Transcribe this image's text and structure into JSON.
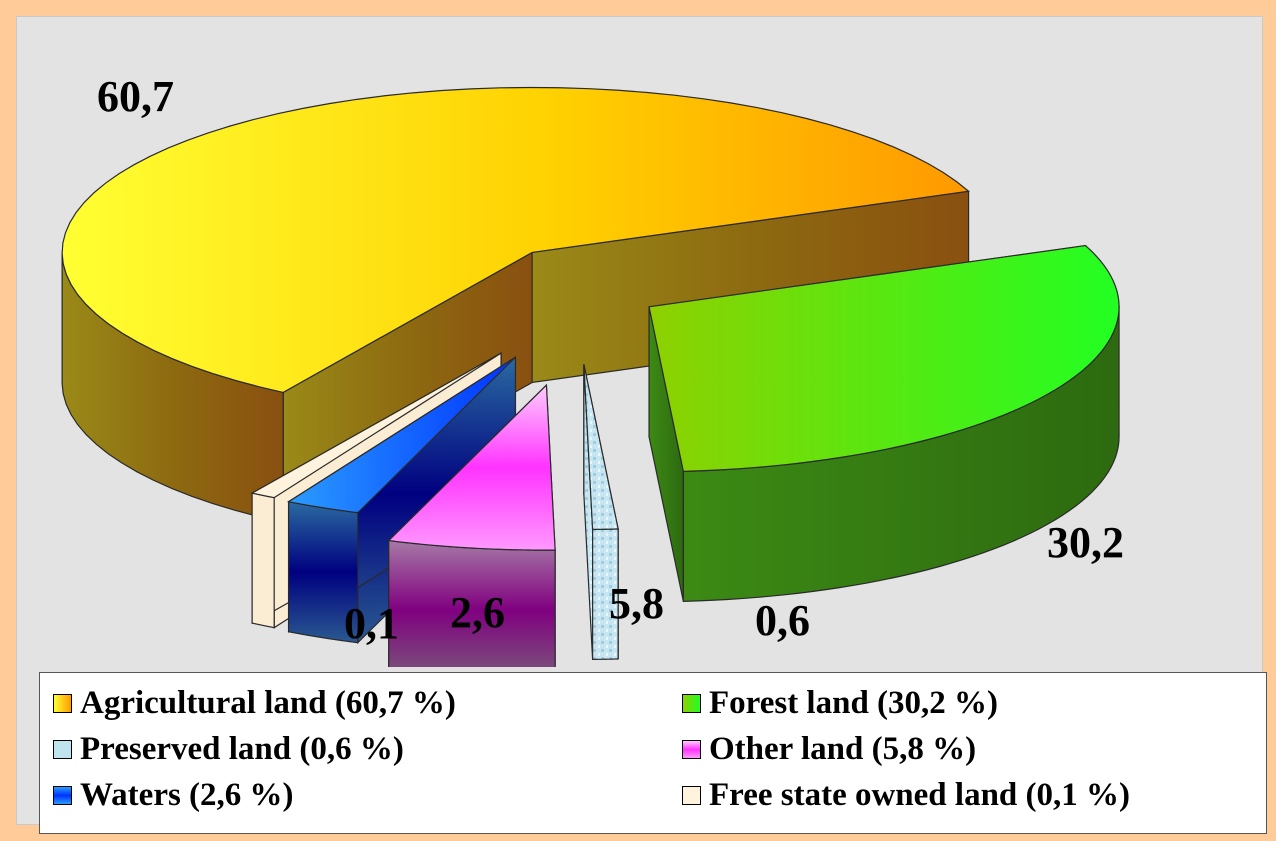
{
  "chart_data": {
    "type": "pie",
    "style": "3d-exploded",
    "slices": [
      {
        "label": "Agricultural land (60,7 %)",
        "value": 60.7,
        "data_label": "60,7",
        "color": "#ffd400"
      },
      {
        "label": "Forest land (30,2 %)",
        "value": 30.2,
        "data_label": "30,2",
        "color": "#66dd00"
      },
      {
        "label": "Preserved land (0,6 %)",
        "value": 0.6,
        "data_label": "0,6",
        "color": "#bfe4ef"
      },
      {
        "label": "Other land (5,8 %)",
        "value": 5.8,
        "data_label": "5,8",
        "color": "#ff80ff"
      },
      {
        "label": "Waters (2,6 %)",
        "value": 2.6,
        "data_label": "2,6",
        "color": "#1a5cff"
      },
      {
        "label": "Free state owned land (0,1 %)",
        "value": 0.1,
        "data_label": "0,1",
        "color": "#fff3dd"
      }
    ],
    "legend_position": "bottom"
  },
  "colors": {
    "page_background": "#ffcc99",
    "plot_background": "#e3e3e3"
  }
}
